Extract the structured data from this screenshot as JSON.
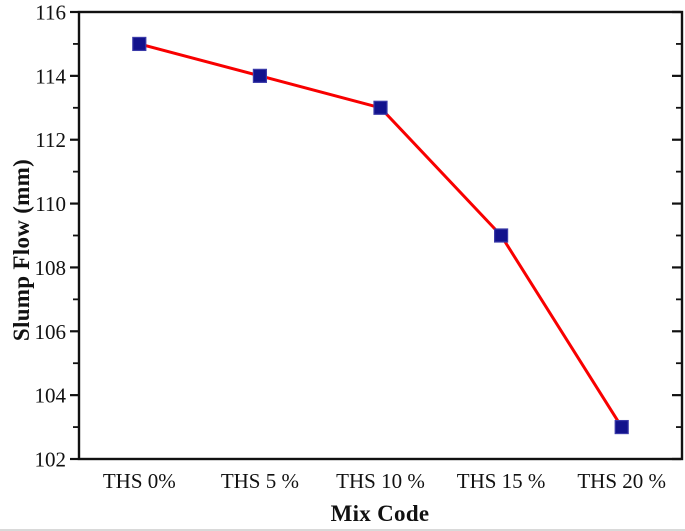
{
  "chart_data": {
    "type": "line",
    "title": "",
    "xlabel": "Mix Code",
    "ylabel": "Slump Flow (mm)",
    "categories": [
      "THS 0%",
      "THS 5 %",
      "THS 10 %",
      "THS 15 %",
      "THS 20 %"
    ],
    "series": [
      {
        "values": [
          115,
          114,
          113,
          109,
          103
        ],
        "line_color": "#F80000",
        "marker": "square",
        "marker_color": "#12128C",
        "marker_edge_color": "#3A3AA8"
      }
    ],
    "ylim": [
      102,
      116
    ],
    "y_major_step": 2,
    "y_minor_step": 1,
    "y_tick_labels": [
      "116",
      "114",
      "112",
      "110",
      "108",
      "106",
      "104",
      "102"
    ],
    "grid": false,
    "legend_position": "none",
    "axis_color": "#111111",
    "background": "#FFFFFF"
  }
}
